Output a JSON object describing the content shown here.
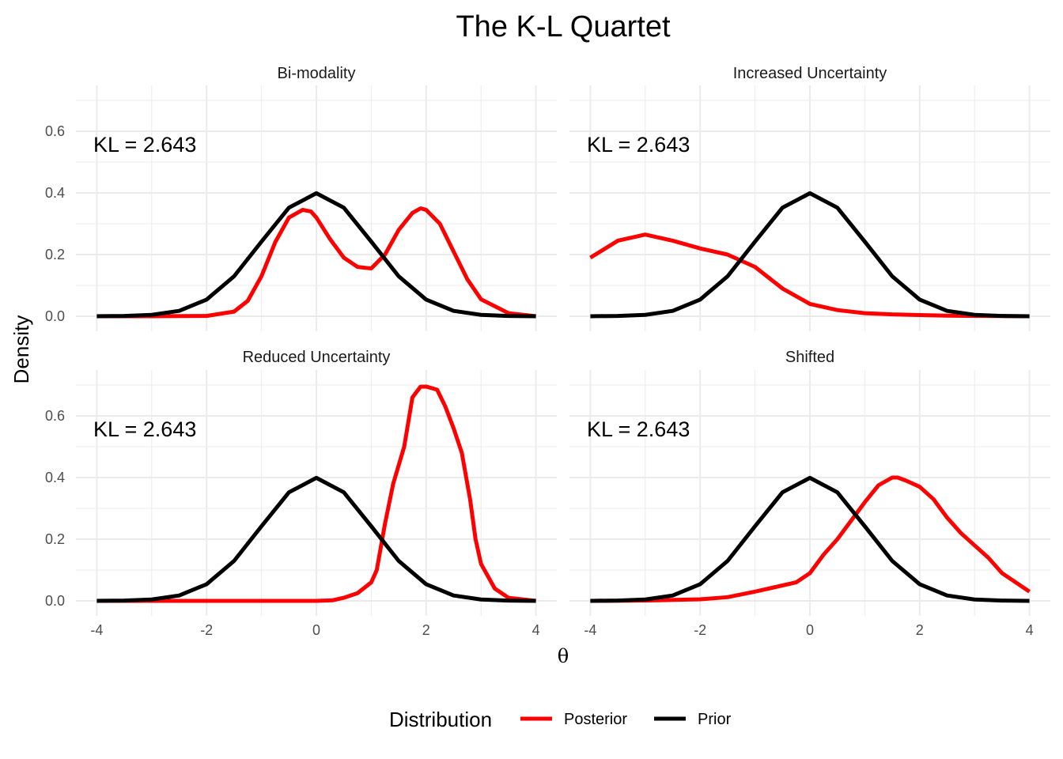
{
  "title": "The K-L Quartet",
  "xlabel": "θ",
  "ylabel": "Density",
  "legend": {
    "title": "Distribution",
    "position": "bottom",
    "entries": [
      {
        "label": "Posterior",
        "color": "#ff0000"
      },
      {
        "label": "Prior",
        "color": "#000000"
      }
    ]
  },
  "colors": {
    "posterior": "#ff0000",
    "prior": "#000000",
    "grid": "#ebebeb"
  },
  "chart_data": [
    {
      "type": "line",
      "title": "Bi-modality",
      "annotation": "KL = 2.643",
      "xlim": [
        -4,
        4
      ],
      "ylim": [
        0,
        0.7
      ],
      "x_ticks": [
        "-4",
        "-2",
        "0",
        "2",
        "4"
      ],
      "y_ticks": [
        "0.0",
        "0.2",
        "0.4",
        "0.6"
      ],
      "show_x_ticks": false,
      "show_y_ticks": true,
      "series": [
        {
          "name": "Posterior",
          "x": [
            -4,
            -3,
            -2,
            -1.5,
            -1.25,
            -1,
            -0.75,
            -0.5,
            -0.25,
            -0.1,
            0,
            0.25,
            0.5,
            0.75,
            1,
            1.25,
            1.5,
            1.75,
            1.9,
            2,
            2.25,
            2.5,
            2.75,
            3,
            3.5,
            4
          ],
          "y": [
            0,
            0,
            0.001,
            0.015,
            0.05,
            0.13,
            0.24,
            0.32,
            0.345,
            0.34,
            0.32,
            0.25,
            0.19,
            0.16,
            0.155,
            0.2,
            0.28,
            0.335,
            0.35,
            0.345,
            0.3,
            0.21,
            0.12,
            0.055,
            0.01,
            0
          ]
        },
        {
          "name": "Prior",
          "x": [
            -4,
            -3.5,
            -3,
            -2.5,
            -2,
            -1.5,
            -1,
            -0.5,
            0,
            0.5,
            1,
            1.5,
            2,
            2.5,
            3,
            3.5,
            4
          ],
          "y": [
            0.0001,
            0.0009,
            0.0044,
            0.0175,
            0.054,
            0.1295,
            0.242,
            0.352,
            0.399,
            0.352,
            0.242,
            0.1295,
            0.054,
            0.0175,
            0.0044,
            0.0009,
            0.0001
          ]
        }
      ]
    },
    {
      "type": "line",
      "title": "Increased Uncertainty",
      "annotation": "KL = 2.643",
      "xlim": [
        -4,
        4
      ],
      "ylim": [
        0,
        0.7
      ],
      "x_ticks": [
        "-4",
        "-2",
        "0",
        "2",
        "4"
      ],
      "y_ticks": [
        "0.0",
        "0.2",
        "0.4",
        "0.6"
      ],
      "show_x_ticks": false,
      "show_y_ticks": false,
      "series": [
        {
          "name": "Posterior",
          "x": [
            -4,
            -3.5,
            -3,
            -2.5,
            -2,
            -1.5,
            -1,
            -0.5,
            0,
            0.5,
            1,
            1.5,
            2,
            2.5,
            3,
            3.5,
            4
          ],
          "y": [
            0.19,
            0.245,
            0.265,
            0.245,
            0.22,
            0.2,
            0.16,
            0.09,
            0.04,
            0.02,
            0.01,
            0.006,
            0.004,
            0.002,
            0.001,
            0.0005,
            0
          ]
        },
        {
          "name": "Prior",
          "x": [
            -4,
            -3.5,
            -3,
            -2.5,
            -2,
            -1.5,
            -1,
            -0.5,
            0,
            0.5,
            1,
            1.5,
            2,
            2.5,
            3,
            3.5,
            4
          ],
          "y": [
            0.0001,
            0.0009,
            0.0044,
            0.0175,
            0.054,
            0.1295,
            0.242,
            0.352,
            0.399,
            0.352,
            0.242,
            0.1295,
            0.054,
            0.0175,
            0.0044,
            0.0009,
            0.0001
          ]
        }
      ]
    },
    {
      "type": "line",
      "title": "Reduced Uncertainty",
      "annotation": "KL = 2.643",
      "xlim": [
        -4,
        4
      ],
      "ylim": [
        0,
        0.7
      ],
      "x_ticks": [
        "-4",
        "-2",
        "0",
        "2",
        "4"
      ],
      "y_ticks": [
        "0.0",
        "0.2",
        "0.4",
        "0.6"
      ],
      "show_x_ticks": true,
      "show_y_ticks": true,
      "series": [
        {
          "name": "Posterior",
          "x": [
            -4,
            0,
            0.3,
            0.5,
            0.75,
            1,
            1.1,
            1.25,
            1.4,
            1.6,
            1.75,
            1.9,
            2,
            2.2,
            2.35,
            2.5,
            2.65,
            2.8,
            2.9,
            3,
            3.25,
            3.5,
            4
          ],
          "y": [
            0,
            0,
            0.002,
            0.01,
            0.025,
            0.06,
            0.1,
            0.25,
            0.38,
            0.5,
            0.66,
            0.695,
            0.695,
            0.685,
            0.63,
            0.56,
            0.48,
            0.33,
            0.2,
            0.12,
            0.04,
            0.01,
            0
          ]
        },
        {
          "name": "Prior",
          "x": [
            -4,
            -3.5,
            -3,
            -2.5,
            -2,
            -1.5,
            -1,
            -0.5,
            0,
            0.5,
            1,
            1.5,
            2,
            2.5,
            3,
            3.5,
            4
          ],
          "y": [
            0.0001,
            0.0009,
            0.0044,
            0.0175,
            0.054,
            0.1295,
            0.242,
            0.352,
            0.399,
            0.352,
            0.242,
            0.1295,
            0.054,
            0.0175,
            0.0044,
            0.0009,
            0.0001
          ]
        }
      ]
    },
    {
      "type": "line",
      "title": "Shifted",
      "annotation": "KL = 2.643",
      "xlim": [
        -4,
        4
      ],
      "ylim": [
        0,
        0.7
      ],
      "x_ticks": [
        "-4",
        "-2",
        "0",
        "2",
        "4"
      ],
      "y_ticks": [
        "0.0",
        "0.2",
        "0.4",
        "0.6"
      ],
      "show_x_ticks": true,
      "show_y_ticks": false,
      "series": [
        {
          "name": "Posterior",
          "x": [
            -4,
            -3,
            -2,
            -1.5,
            -1,
            -0.5,
            -0.25,
            0,
            0.25,
            0.5,
            0.75,
            1,
            1.25,
            1.5,
            1.6,
            1.75,
            2,
            2.25,
            2.5,
            2.75,
            3,
            3.25,
            3.5,
            4
          ],
          "y": [
            0,
            0.001,
            0.005,
            0.012,
            0.03,
            0.05,
            0.06,
            0.09,
            0.15,
            0.2,
            0.26,
            0.32,
            0.375,
            0.4,
            0.4,
            0.39,
            0.37,
            0.33,
            0.27,
            0.22,
            0.18,
            0.14,
            0.09,
            0.03
          ]
        },
        {
          "name": "Prior",
          "x": [
            -4,
            -3.5,
            -3,
            -2.5,
            -2,
            -1.5,
            -1,
            -0.5,
            0,
            0.5,
            1,
            1.5,
            2,
            2.5,
            3,
            3.5,
            4
          ],
          "y": [
            0.0001,
            0.0009,
            0.0044,
            0.0175,
            0.054,
            0.1295,
            0.242,
            0.352,
            0.399,
            0.352,
            0.242,
            0.1295,
            0.054,
            0.0175,
            0.0044,
            0.0009,
            0.0001
          ]
        }
      ]
    }
  ]
}
